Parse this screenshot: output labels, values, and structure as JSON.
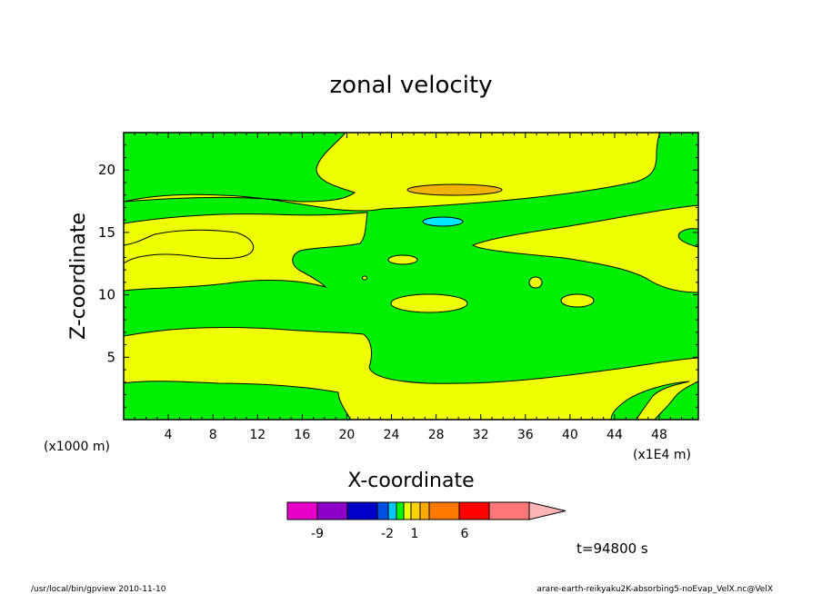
{
  "chart_data": {
    "type": "heatmap",
    "title": "zonal velocity",
    "xlabel": "X-coordinate",
    "ylabel": "Z-coordinate",
    "x_unit": "(x1E4 m)",
    "y_unit": "(x1000 m)",
    "xlim": [
      0,
      51.5
    ],
    "ylim": [
      0,
      23
    ],
    "x_ticks": [
      "4",
      "8",
      "12",
      "16",
      "20",
      "24",
      "28",
      "32",
      "36",
      "40",
      "44",
      "48"
    ],
    "y_ticks": [
      "5",
      "10",
      "15",
      "20"
    ],
    "regions": [
      {
        "level": "green (weak easterly)",
        "color": "#00ee00"
      },
      {
        "level": "yellow (weak westerly)",
        "color": "#eeff00"
      },
      {
        "level": "orange",
        "color": "#f0b400"
      },
      {
        "level": "cyan",
        "color": "#00e8ff"
      }
    ],
    "colorbar": {
      "labels": [
        "-9",
        "-2",
        "1",
        "6"
      ],
      "colors": [
        "#e600c8",
        "#8c00c8",
        "#0000c8",
        "#0050e6",
        "#00c8ff",
        "#00ff00",
        "#eeff00",
        "#ffd200",
        "#ffaa00",
        "#ff7800",
        "#ff0000",
        "#ff7878"
      ],
      "arrow_color": "#ffb4b4"
    },
    "time_label": "t=94800 s"
  },
  "footer": {
    "left": "/usr/local/bin/gpview  2010-11-10",
    "right": "arare-earth-reikyaku2K-absorbing5-noEvap_VelX.nc@VelX"
  }
}
